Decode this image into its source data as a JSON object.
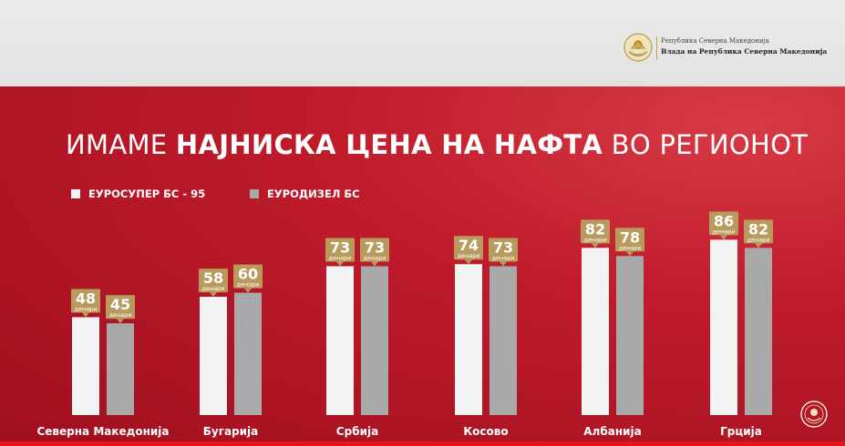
{
  "header": {
    "gov_line1": "Република Северна Македонија",
    "gov_line2": "Влада на Република Северна Македонија",
    "logo_icon": "coat-of-arms-icon"
  },
  "title": {
    "part1": "ИМАМЕ ",
    "part2": "НАЈНИСКА ЦЕНА НА НАФТА",
    "part3": " ВО РЕГИОНОТ"
  },
  "colors": {
    "background_red": "#c0172a",
    "series_petrol": "#f3f3f3",
    "series_diesel": "#a9a9a9",
    "label_gold": "#b89a5c",
    "bottom_line": "#e8141c"
  },
  "chart_data": {
    "type": "bar",
    "title": "ИМАМЕ НАЈНИСКА ЦЕНА НА НАФТА ВО РЕГИОНОТ",
    "categories": [
      "Северна Македонија",
      "Бугарија",
      "Србија",
      "Косово",
      "Албанија",
      "Грција"
    ],
    "series": [
      {
        "name": "ЕУРОСУПЕР БС - 95",
        "values": [
          48,
          58,
          73,
          74,
          82,
          86
        ]
      },
      {
        "name": "ЕУРОДИЗЕЛ БС",
        "values": [
          45,
          60,
          73,
          73,
          78,
          82
        ]
      }
    ],
    "unit_label": "денари",
    "ylim": [
      0,
      100
    ],
    "legend_position": "top-left",
    "grid": false
  }
}
